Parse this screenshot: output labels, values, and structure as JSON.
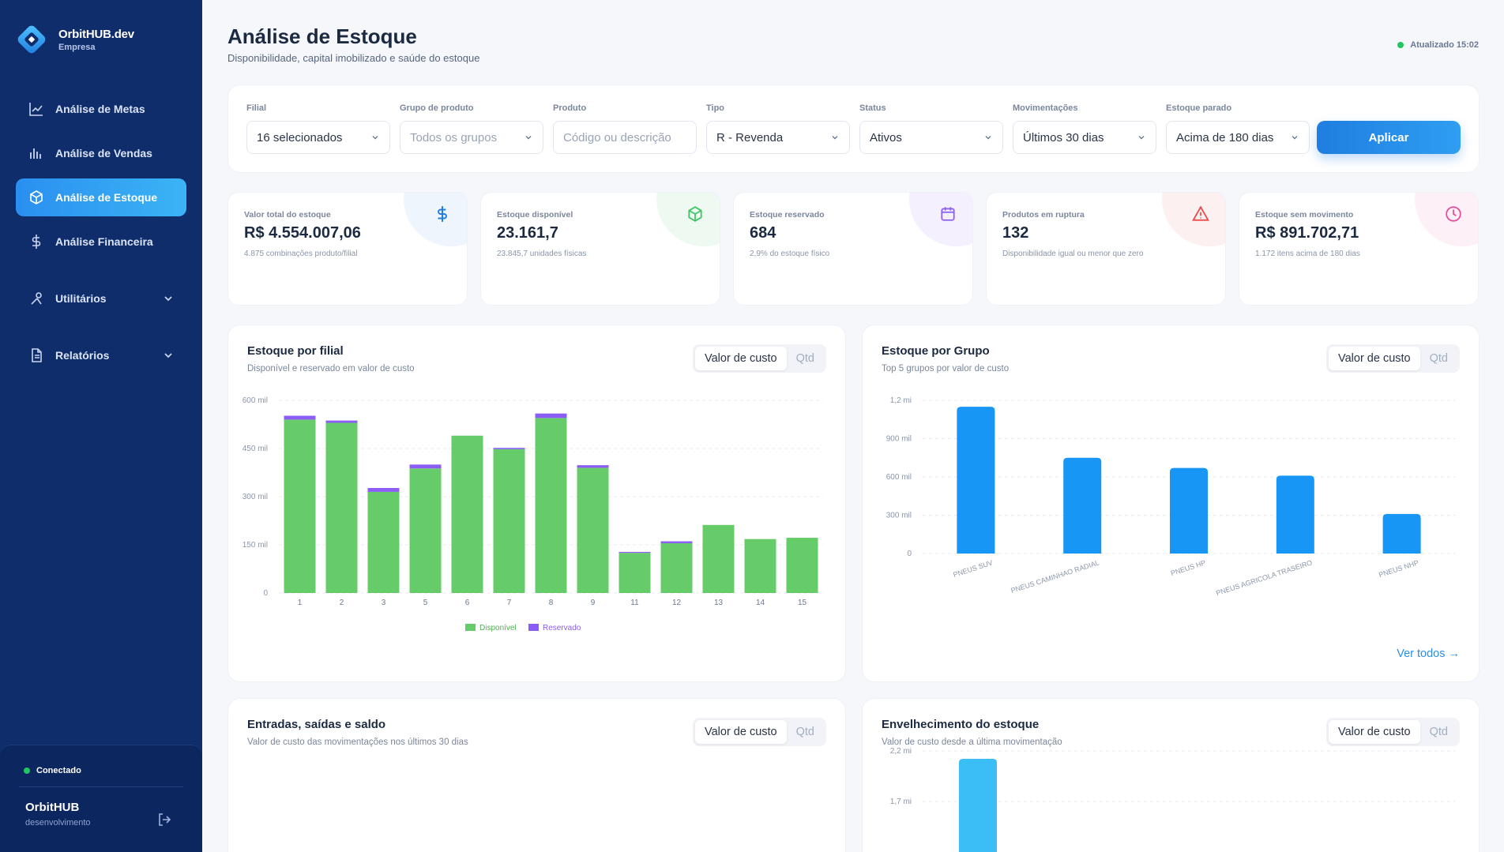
{
  "brand": {
    "name": "OrbitHUB.dev",
    "subtitle": "Empresa"
  },
  "nav": [
    {
      "label": "Análise de Metas",
      "icon": "line-chart-icon",
      "active": false
    },
    {
      "label": "Análise de Vendas",
      "icon": "bar-chart-icon",
      "active": false
    },
    {
      "label": "Análise de Estoque",
      "icon": "box-icon",
      "active": true
    },
    {
      "label": "Análise Financeira",
      "icon": "dollar-icon",
      "active": false
    },
    {
      "label": "Utilitários",
      "icon": "tools-icon",
      "active": false
    },
    {
      "label": "Relatórios",
      "icon": "document-icon",
      "active": false
    }
  ],
  "footer": {
    "status": "Conectado",
    "user": "OrbitHUB",
    "env": "desenvolvimento"
  },
  "header": {
    "title": "Análise de Estoque",
    "subtitle": "Disponibilidade, capital imobilizado e saúde do estoque",
    "updated": "Atualizado 15:02"
  },
  "filters": [
    {
      "label": "Filial",
      "value": "16 selecionados",
      "placeholder": false
    },
    {
      "label": "Grupo de produto",
      "value": "Todos os grupos",
      "placeholder": true
    },
    {
      "label": "Produto",
      "value": "Código ou descrição",
      "placeholder": true
    },
    {
      "label": "Tipo",
      "value": "R - Revenda",
      "placeholder": false
    },
    {
      "label": "Status",
      "value": "Ativos",
      "placeholder": false
    },
    {
      "label": "Movimentações",
      "value": "Últimos 30 dias",
      "placeholder": false
    },
    {
      "label": "Estoque parado",
      "value": "Acima de 180 dias",
      "placeholder": false
    }
  ],
  "apply_label": "Aplicar",
  "kpis": [
    {
      "label": "Valor total do estoque",
      "value": "R$ 4.554.007,06",
      "sub": "4.875 combinações produto/filial",
      "icon": "dollar-icon",
      "color": "#1f7ee0",
      "blob": "#eef5fd"
    },
    {
      "label": "Estoque disponível",
      "value": "23.161,7",
      "sub": "23.845,7 unidades físicas",
      "icon": "cube-icon",
      "color": "#3ec463",
      "blob": "#eefaf1"
    },
    {
      "label": "Estoque reservado",
      "value": "684",
      "sub": "2,9% do estoque físico",
      "icon": "calendar-icon",
      "color": "#8b5cf6",
      "blob": "#f4f0fe"
    },
    {
      "label": "Produtos em ruptura",
      "value": "132",
      "sub": "Disponibilidade igual ou menor que zero",
      "icon": "alert-icon",
      "color": "#ef4444",
      "blob": "#fdf0f0"
    },
    {
      "label": "Estoque sem movimento",
      "value": "R$ 891.702,71",
      "sub": "1.172 itens acima de 180 dias",
      "icon": "clock-icon",
      "color": "#ec4899",
      "blob": "#fdf0f6"
    }
  ],
  "toggle": {
    "a": "Valor de custo",
    "b": "Qtd"
  },
  "cards": {
    "filial": {
      "title": "Estoque por filial",
      "subtitle": "Disponível e reservado em valor de custo"
    },
    "grupo": {
      "title": "Estoque por Grupo",
      "subtitle": "Top 5 grupos por valor de custo",
      "link": "Ver todos →"
    },
    "entradas": {
      "title": "Entradas, saídas e saldo",
      "subtitle": "Valor de custo das movimentações nos últimos 30 dias"
    },
    "envelhecimento": {
      "title": "Envelhecimento do estoque",
      "subtitle": "Valor de custo desde a última movimentação"
    }
  },
  "chart_data": [
    {
      "type": "bar",
      "stacked": true,
      "categories": [
        "1",
        "2",
        "3",
        "5",
        "6",
        "7",
        "8",
        "9",
        "11",
        "12",
        "13",
        "14",
        "15"
      ],
      "series": [
        {
          "name": "Disponível",
          "color": "#66cc6a",
          "values": [
            540000,
            530000,
            315000,
            388000,
            490000,
            448000,
            545000,
            390000,
            125000,
            155000,
            212000,
            168000,
            172000
          ]
        },
        {
          "name": "Reservado",
          "color": "#8b5cf6",
          "values": [
            12000,
            7000,
            12000,
            12000,
            0,
            4000,
            14000,
            8000,
            3000,
            6000,
            0,
            0,
            0
          ]
        }
      ],
      "yticks": [
        "0",
        "150 mil",
        "300 mil",
        "450 mil",
        "600 mil"
      ],
      "ylim": [
        0,
        600000
      ],
      "legend": "bottom",
      "grid": true
    },
    {
      "type": "bar",
      "categories": [
        "PNEUS SUV",
        "PNEUS CAMINHAO RADIAL",
        "PNEUS HP",
        "PNEUS AGRICOLA TRASEIRO",
        "PNEUS NHP"
      ],
      "values": [
        1150000,
        750000,
        670000,
        610000,
        310000
      ],
      "color": "#1796f5",
      "yticks": [
        "0",
        "300 mil",
        "600 mil",
        "900 mil",
        "1,2 mi"
      ],
      "ylim": [
        0,
        1200000
      ],
      "grid": true
    },
    {
      "type": "bar",
      "categories": [
        ""
      ],
      "values": [
        2200000
      ],
      "color": "#3bbdf5",
      "yticks": [
        "1,7 mi",
        "2,2 mi"
      ],
      "grid": true
    }
  ]
}
